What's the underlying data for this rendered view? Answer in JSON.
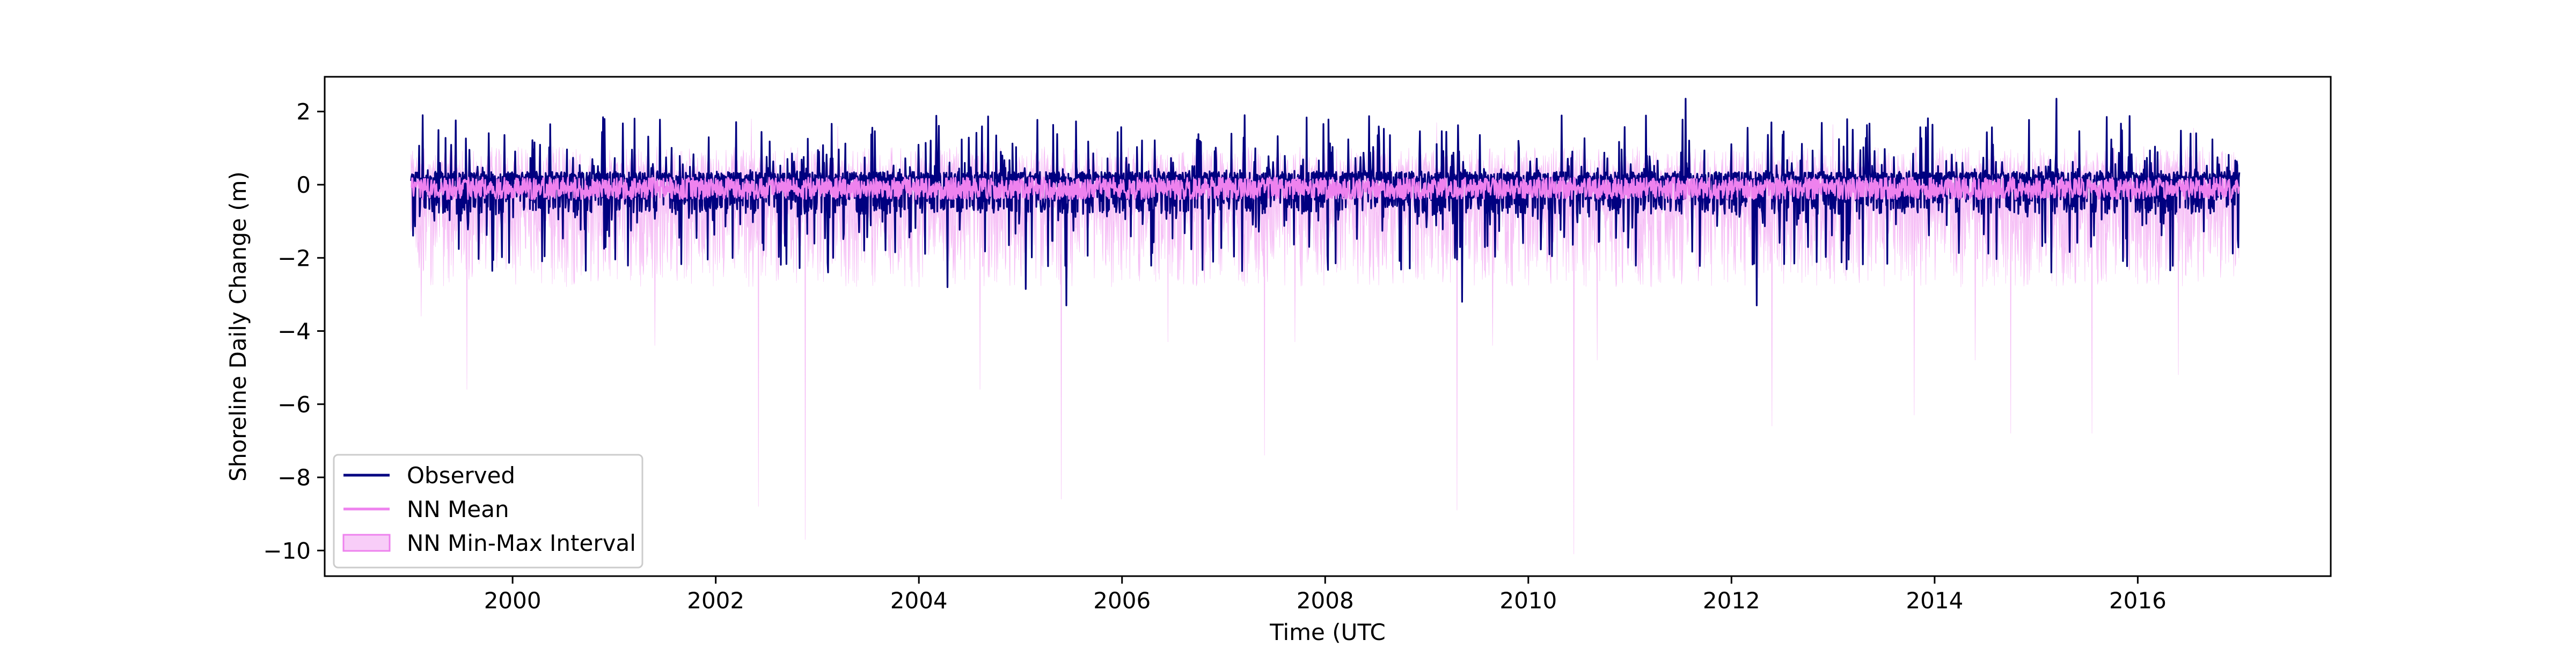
{
  "chart_data": {
    "type": "line",
    "title": "",
    "xlabel": "Time (UTC",
    "ylabel": "Shoreline Daily Change (m)",
    "xlim": [
      1998.15,
      2017.9
    ],
    "ylim": [
      -10.7,
      2.95
    ],
    "x_ticks": [
      2000,
      2002,
      2004,
      2006,
      2008,
      2010,
      2012,
      2014,
      2016
    ],
    "x_tick_labels": [
      "2000",
      "2002",
      "2004",
      "2006",
      "2008",
      "2010",
      "2012",
      "2014",
      "2016"
    ],
    "y_ticks": [
      2,
      0,
      -2,
      -4,
      -6,
      -8,
      -10
    ],
    "y_tick_labels": [
      "2",
      "0",
      "−2",
      "−4",
      "−6",
      "−8",
      "−10"
    ],
    "x_range_data": [
      1999.0,
      2017.0
    ],
    "grid": false,
    "legend_position": "lower-left",
    "legend": [
      {
        "label": "Observed",
        "kind": "line",
        "color": "#000080"
      },
      {
        "label": "NN Mean",
        "kind": "line",
        "color": "#ee82ee"
      },
      {
        "label": "NN Min-Max Interval",
        "kind": "patch",
        "color": "#ee82ee"
      }
    ],
    "series": [
      {
        "name": "Observed",
        "color": "#000080",
        "typical_range": [
          -1.2,
          0.9
        ],
        "notable_extremes": [
          {
            "x": 2004.28,
            "y": 2.3
          },
          {
            "x": 2011.55,
            "y": 2.35
          },
          {
            "x": 2015.2,
            "y": 2.35
          },
          {
            "x": 2005.45,
            "y": -3.3
          },
          {
            "x": 2012.25,
            "y": -3.3
          },
          {
            "x": 2009.35,
            "y": -3.2
          },
          {
            "x": 2004.28,
            "y": -2.8
          },
          {
            "x": 2005.05,
            "y": -2.85
          },
          {
            "x": 2015.15,
            "y": -2.4
          }
        ]
      },
      {
        "name": "NN Mean",
        "color": "#ee82ee",
        "typical_range": [
          -0.5,
          0.3
        ]
      },
      {
        "name": "NN Min-Max Interval",
        "color": "#ee82ee",
        "fill_alpha": 0.4,
        "typical_range": [
          -2.0,
          0.8
        ],
        "notable_minima": [
          {
            "x": 1999.1,
            "y": -3.6
          },
          {
            "x": 1999.55,
            "y": -5.6
          },
          {
            "x": 2001.4,
            "y": -4.4
          },
          {
            "x": 2002.42,
            "y": -8.8
          },
          {
            "x": 2002.88,
            "y": -9.7
          },
          {
            "x": 2004.0,
            "y": -2.8
          },
          {
            "x": 2004.45,
            "y": -2.6
          },
          {
            "x": 2004.6,
            "y": -5.6
          },
          {
            "x": 2005.4,
            "y": -8.6
          },
          {
            "x": 2006.45,
            "y": -4.3
          },
          {
            "x": 2007.4,
            "y": -7.4
          },
          {
            "x": 2007.7,
            "y": -4.3
          },
          {
            "x": 2009.3,
            "y": -8.9
          },
          {
            "x": 2009.65,
            "y": -4.4
          },
          {
            "x": 2010.45,
            "y": -10.1
          },
          {
            "x": 2010.68,
            "y": -4.8
          },
          {
            "x": 2012.4,
            "y": -6.6
          },
          {
            "x": 2013.8,
            "y": -6.3
          },
          {
            "x": 2014.4,
            "y": -4.8
          },
          {
            "x": 2014.75,
            "y": -6.8
          },
          {
            "x": 2015.55,
            "y": -6.8
          },
          {
            "x": 2016.4,
            "y": -5.2
          }
        ],
        "notable_maxima": [
          {
            "x": 2002.35,
            "y": 1.8
          },
          {
            "x": 2003.2,
            "y": 1.6
          },
          {
            "x": 2009.1,
            "y": 1.7
          },
          {
            "x": 2013.0,
            "y": 1.65
          },
          {
            "x": 2016.55,
            "y": 1.55
          }
        ]
      }
    ]
  }
}
